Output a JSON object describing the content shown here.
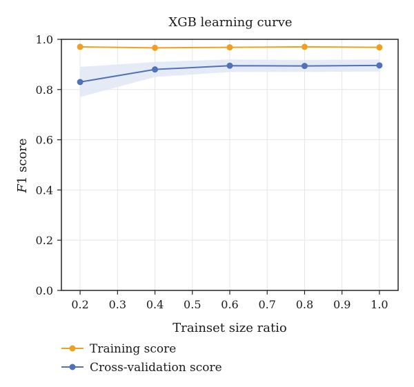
{
  "chart_data": {
    "type": "line",
    "title": "XGB learning curve",
    "xlabel": "Trainset size ratio",
    "ylabel": "F1 score",
    "x": [
      0.2,
      0.4,
      0.6,
      0.8,
      1.0
    ],
    "xticks": [
      "0.2",
      "0.3",
      "0.4",
      "0.5",
      "0.6",
      "0.7",
      "0.8",
      "0.9",
      "1.0"
    ],
    "yticks": [
      "0.0",
      "0.2",
      "0.4",
      "0.6",
      "0.8",
      "1.0"
    ],
    "xlim": [
      0.15,
      1.05
    ],
    "ylim": [
      0.0,
      1.0
    ],
    "grid": true,
    "legend_position": "bottom-left, below axes",
    "series": [
      {
        "name": "Training score",
        "color": "#f0a020",
        "values": [
          0.97,
          0.966,
          0.968,
          0.97,
          0.968
        ]
      },
      {
        "name": "Cross-validation score",
        "color": "#4f72b8",
        "band_color": "#dfe7f5",
        "values": [
          0.83,
          0.88,
          0.895,
          0.894,
          0.896
        ],
        "band_lower": [
          0.77,
          0.85,
          0.87,
          0.87,
          0.872
        ],
        "band_upper": [
          0.89,
          0.91,
          0.92,
          0.918,
          0.92
        ]
      }
    ]
  }
}
